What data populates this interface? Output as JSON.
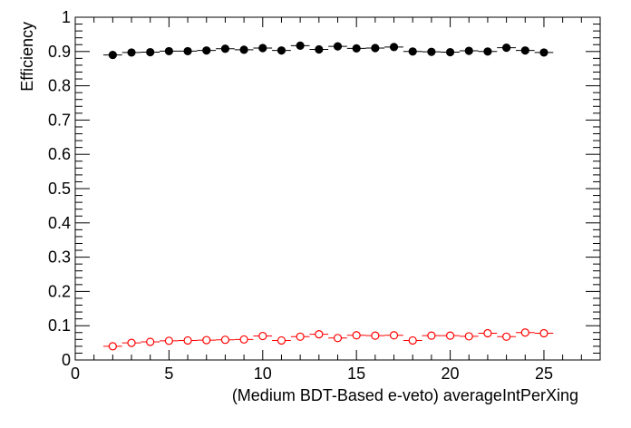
{
  "chart_data": {
    "type": "scatter",
    "xlabel": "(Medium BDT-Based e-veto) averageIntPerXing",
    "ylabel": "Efficiency",
    "xlim": [
      0,
      28
    ],
    "ylim": [
      0,
      1
    ],
    "x_ticks": [
      0,
      5,
      10,
      15,
      20,
      25
    ],
    "y_ticks": [
      0,
      0.1,
      0.2,
      0.3,
      0.4,
      0.5,
      0.6,
      0.7,
      0.8,
      0.9,
      1
    ],
    "x_bin_halfwidth": 0.5,
    "grid": false,
    "legend": "none",
    "series": [
      {
        "marker": "filled-circle",
        "color": "#000000",
        "x": [
          2,
          3,
          4,
          5,
          6,
          7,
          8,
          9,
          10,
          11,
          12,
          13,
          14,
          15,
          16,
          17,
          18,
          19,
          20,
          21,
          22,
          23,
          24,
          25
        ],
        "y": [
          0.89,
          0.897,
          0.898,
          0.901,
          0.901,
          0.903,
          0.908,
          0.905,
          0.91,
          0.903,
          0.917,
          0.906,
          0.915,
          0.909,
          0.91,
          0.913,
          0.9,
          0.899,
          0.898,
          0.902,
          0.9,
          0.911,
          0.903,
          0.897
        ]
      },
      {
        "marker": "open-circle",
        "color": "#ff0000",
        "x": [
          2,
          3,
          4,
          5,
          6,
          7,
          8,
          9,
          10,
          11,
          12,
          13,
          14,
          15,
          16,
          17,
          18,
          19,
          20,
          21,
          22,
          23,
          24,
          25
        ],
        "y": [
          0.04,
          0.05,
          0.053,
          0.056,
          0.057,
          0.058,
          0.059,
          0.06,
          0.07,
          0.057,
          0.068,
          0.075,
          0.064,
          0.072,
          0.071,
          0.072,
          0.057,
          0.071,
          0.071,
          0.069,
          0.078,
          0.068,
          0.08,
          0.078
        ]
      }
    ]
  }
}
